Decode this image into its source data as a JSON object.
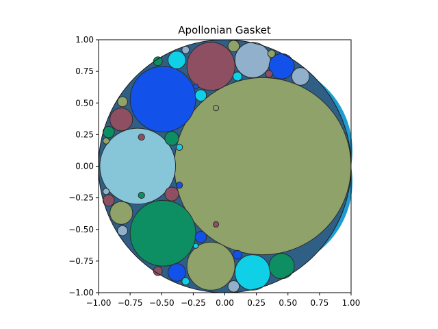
{
  "chart_data": {
    "type": "scatter",
    "title": "Apollonian Gasket",
    "xlabel": "",
    "ylabel": "",
    "xlim": [
      -1.0,
      1.0
    ],
    "ylim": [
      -1.0,
      1.0
    ],
    "grid": false,
    "xticks": [
      "−1.00",
      "−0.75",
      "−0.50",
      "−0.25",
      "0.00",
      "0.25",
      "0.50",
      "0.75",
      "1.00"
    ],
    "yticks": [
      "1.00",
      "0.75",
      "0.50",
      "0.25",
      "0.00",
      "−0.25",
      "−0.50",
      "−0.75",
      "−1.00"
    ],
    "xtick_values": [
      -1.0,
      -0.75,
      -0.5,
      -0.25,
      0.0,
      0.25,
      0.5,
      0.75,
      1.0
    ],
    "ytick_values": [
      1.0,
      0.75,
      0.5,
      0.25,
      0.0,
      -0.25,
      -0.5,
      -0.75,
      -1.0
    ],
    "outer_circle": {
      "cx": 0.0,
      "cy": 0.0,
      "r": 1.0,
      "color": "#1f9dd0"
    },
    "circles": [
      {
        "cx": 0.3,
        "cy": 0.0,
        "r": 0.7,
        "color": "#8fa26a"
      },
      {
        "cx": -0.69,
        "cy": 0.0,
        "r": 0.3,
        "color": "#87c6d9"
      },
      {
        "cx": -0.49,
        "cy": 0.53,
        "r": 0.26,
        "color": "#1252ea"
      },
      {
        "cx": -0.49,
        "cy": -0.53,
        "r": 0.26,
        "color": "#0e8f63"
      },
      {
        "cx": -0.11,
        "cy": 0.79,
        "r": 0.19,
        "color": "#8e4f63"
      },
      {
        "cx": -0.11,
        "cy": -0.79,
        "r": 0.19,
        "color": "#8fa26a"
      },
      {
        "cx": 0.22,
        "cy": 0.84,
        "r": 0.14,
        "color": "#90b0cc"
      },
      {
        "cx": 0.22,
        "cy": -0.84,
        "r": 0.14,
        "color": "#10d0e8"
      },
      {
        "cx": -0.82,
        "cy": 0.37,
        "r": 0.09,
        "color": "#8e4f63"
      },
      {
        "cx": -0.82,
        "cy": -0.37,
        "r": 0.09,
        "color": "#8fa26a"
      },
      {
        "cx": 0.45,
        "cy": 0.79,
        "r": 0.1,
        "color": "#1252ea"
      },
      {
        "cx": 0.45,
        "cy": -0.79,
        "r": 0.1,
        "color": "#0e8f63"
      },
      {
        "cx": -0.38,
        "cy": 0.84,
        "r": 0.07,
        "color": "#10d0e8"
      },
      {
        "cx": -0.38,
        "cy": -0.84,
        "r": 0.07,
        "color": "#1252ea"
      },
      {
        "cx": 0.6,
        "cy": 0.71,
        "r": 0.07,
        "color": "#90b0cc"
      },
      {
        "cx": 0.07,
        "cy": 0.95,
        "r": 0.045,
        "color": "#8fa26a"
      },
      {
        "cx": 0.07,
        "cy": -0.95,
        "r": 0.045,
        "color": "#90b0cc"
      },
      {
        "cx": -0.42,
        "cy": 0.22,
        "r": 0.055,
        "color": "#0e8f63"
      },
      {
        "cx": -0.42,
        "cy": -0.22,
        "r": 0.055,
        "color": "#8e4f63"
      },
      {
        "cx": -0.19,
        "cy": 0.56,
        "r": 0.045,
        "color": "#10d0e8"
      },
      {
        "cx": -0.19,
        "cy": -0.56,
        "r": 0.045,
        "color": "#1252ea"
      },
      {
        "cx": 0.1,
        "cy": 0.71,
        "r": 0.035,
        "color": "#10d0e8"
      },
      {
        "cx": 0.1,
        "cy": -0.7,
        "r": 0.035,
        "color": "#1252ea"
      },
      {
        "cx": -0.92,
        "cy": 0.27,
        "r": 0.045,
        "color": "#0e8f63"
      },
      {
        "cx": -0.92,
        "cy": -0.27,
        "r": 0.045,
        "color": "#8e4f63"
      },
      {
        "cx": -0.81,
        "cy": 0.51,
        "r": 0.04,
        "color": "#8fa26a"
      },
      {
        "cx": -0.81,
        "cy": -0.51,
        "r": 0.04,
        "color": "#90b0cc"
      },
      {
        "cx": -0.53,
        "cy": 0.83,
        "r": 0.035,
        "color": "#0e8f63"
      },
      {
        "cx": -0.53,
        "cy": -0.83,
        "r": 0.035,
        "color": "#8e4f63"
      },
      {
        "cx": 0.37,
        "cy": 0.89,
        "r": 0.03,
        "color": "#8fa26a"
      },
      {
        "cx": 0.35,
        "cy": 0.73,
        "r": 0.028,
        "color": "#8e4f63"
      },
      {
        "cx": -0.31,
        "cy": 0.92,
        "r": 0.03,
        "color": "#90b0cc"
      },
      {
        "cx": -0.31,
        "cy": -0.91,
        "r": 0.03,
        "color": "#10d0e8"
      },
      {
        "cx": -0.36,
        "cy": 0.15,
        "r": 0.025,
        "color": "#10d0e8"
      },
      {
        "cx": -0.36,
        "cy": -0.15,
        "r": 0.025,
        "color": "#1252ea"
      },
      {
        "cx": -0.94,
        "cy": 0.2,
        "r": 0.025,
        "color": "#8fa26a"
      },
      {
        "cx": -0.94,
        "cy": -0.2,
        "r": 0.025,
        "color": "#90b0cc"
      },
      {
        "cx": -0.66,
        "cy": 0.23,
        "r": 0.025,
        "color": "#8e4f63"
      },
      {
        "cx": -0.66,
        "cy": -0.23,
        "r": 0.025,
        "color": "#0e8f63"
      },
      {
        "cx": -0.07,
        "cy": 0.46,
        "r": 0.022,
        "color": "#8fa26a"
      },
      {
        "cx": -0.07,
        "cy": -0.46,
        "r": 0.022,
        "color": "#8e4f63"
      },
      {
        "cx": -0.23,
        "cy": 0.63,
        "r": 0.02,
        "color": "#1252ea"
      },
      {
        "cx": -0.23,
        "cy": -0.63,
        "r": 0.02,
        "color": "#10d0e8"
      }
    ]
  }
}
